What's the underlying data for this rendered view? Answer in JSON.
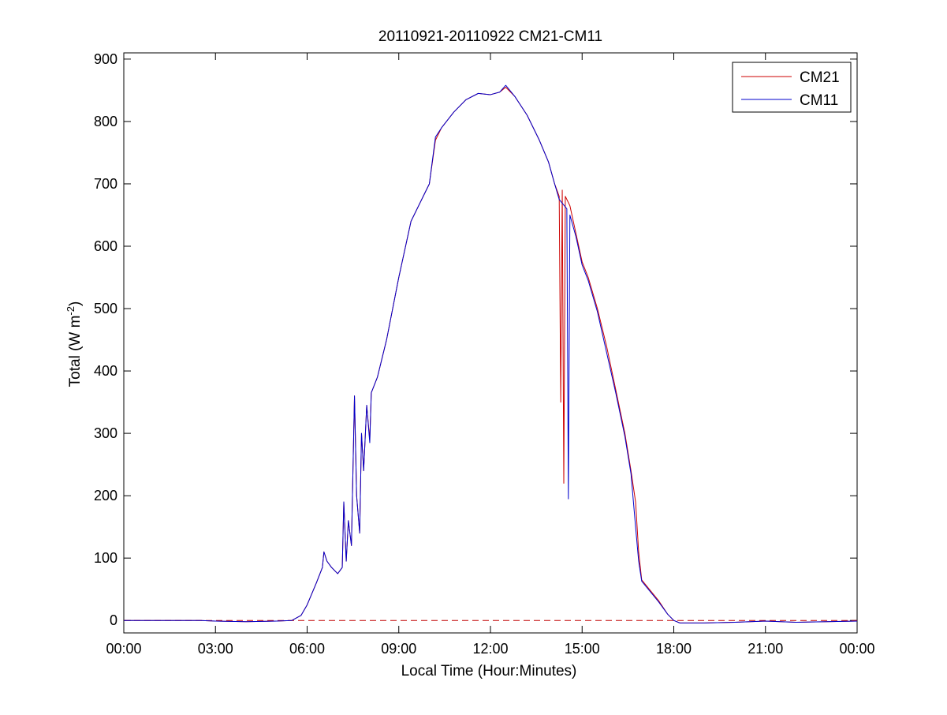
{
  "chart_data": {
    "type": "line",
    "title": "20110921-20110922 CM21-CM11",
    "xlabel": "Local Time (Hour:Minutes)",
    "ylabel": "Total (W m",
    "ylabel_superscript": "-2",
    "ylabel_suffix": ")",
    "xlim": [
      0,
      24
    ],
    "ylim": [
      -20,
      910
    ],
    "x_ticks": [
      0,
      3,
      6,
      9,
      12,
      15,
      18,
      21,
      24
    ],
    "x_tick_labels": [
      "00:00",
      "03:00",
      "06:00",
      "09:00",
      "12:00",
      "15:00",
      "18:00",
      "21:00",
      "00:00"
    ],
    "y_ticks": [
      0,
      100,
      200,
      300,
      400,
      500,
      600,
      700,
      800,
      900
    ],
    "y_tick_labels": [
      "0",
      "100",
      "200",
      "300",
      "400",
      "500",
      "600",
      "700",
      "800",
      "900"
    ],
    "grid": false,
    "legend_position": "top-right",
    "reference_line": {
      "y": 0,
      "style": "dashed",
      "color": "#c00000"
    },
    "series": [
      {
        "name": "CM21",
        "color": "#cc0000",
        "points": [
          [
            0,
            0
          ],
          [
            2.5,
            0
          ],
          [
            3,
            -1
          ],
          [
            4,
            -2
          ],
          [
            5,
            -1
          ],
          [
            5.5,
            0
          ],
          [
            5.8,
            8
          ],
          [
            6.0,
            25
          ],
          [
            6.3,
            60
          ],
          [
            6.5,
            85
          ],
          [
            6.55,
            110
          ],
          [
            6.65,
            95
          ],
          [
            6.8,
            85
          ],
          [
            7.0,
            75
          ],
          [
            7.15,
            85
          ],
          [
            7.2,
            190
          ],
          [
            7.28,
            95
          ],
          [
            7.35,
            160
          ],
          [
            7.45,
            120
          ],
          [
            7.55,
            360
          ],
          [
            7.62,
            200
          ],
          [
            7.72,
            140
          ],
          [
            7.78,
            300
          ],
          [
            7.85,
            240
          ],
          [
            7.95,
            345
          ],
          [
            8.05,
            290
          ],
          [
            8.1,
            365
          ],
          [
            8.3,
            390
          ],
          [
            8.6,
            450
          ],
          [
            9.0,
            550
          ],
          [
            9.4,
            640
          ],
          [
            9.8,
            680
          ],
          [
            10.0,
            700
          ],
          [
            10.2,
            770
          ],
          [
            10.4,
            790
          ],
          [
            10.8,
            815
          ],
          [
            11.2,
            835
          ],
          [
            11.6,
            845
          ],
          [
            12.0,
            843
          ],
          [
            12.3,
            847
          ],
          [
            12.5,
            855
          ],
          [
            12.8,
            840
          ],
          [
            13.2,
            810
          ],
          [
            13.6,
            770
          ],
          [
            13.9,
            735
          ],
          [
            14.1,
            700
          ],
          [
            14.25,
            680
          ],
          [
            14.3,
            350
          ],
          [
            14.35,
            690
          ],
          [
            14.4,
            220
          ],
          [
            14.45,
            680
          ],
          [
            14.6,
            665
          ],
          [
            14.8,
            620
          ],
          [
            15.0,
            575
          ],
          [
            15.2,
            550
          ],
          [
            15.5,
            500
          ],
          [
            15.8,
            440
          ],
          [
            16.1,
            370
          ],
          [
            16.4,
            300
          ],
          [
            16.6,
            240
          ],
          [
            16.75,
            190
          ],
          [
            16.85,
            110
          ],
          [
            16.95,
            65
          ],
          [
            17.2,
            50
          ],
          [
            17.5,
            32
          ],
          [
            17.8,
            10
          ],
          [
            18.0,
            0
          ],
          [
            18.2,
            -4
          ],
          [
            19.0,
            -4
          ],
          [
            20.0,
            -3
          ],
          [
            21.0,
            -1
          ],
          [
            22.0,
            -3
          ],
          [
            23.0,
            -2
          ],
          [
            24.0,
            -1
          ]
        ]
      },
      {
        "name": "CM11",
        "color": "#0000cc",
        "points": [
          [
            0,
            0
          ],
          [
            2.5,
            0
          ],
          [
            3,
            -1
          ],
          [
            4,
            -2
          ],
          [
            5,
            -1
          ],
          [
            5.5,
            0
          ],
          [
            5.8,
            8
          ],
          [
            6.0,
            25
          ],
          [
            6.3,
            60
          ],
          [
            6.5,
            85
          ],
          [
            6.55,
            110
          ],
          [
            6.65,
            95
          ],
          [
            6.8,
            85
          ],
          [
            7.0,
            75
          ],
          [
            7.15,
            85
          ],
          [
            7.2,
            190
          ],
          [
            7.28,
            95
          ],
          [
            7.35,
            160
          ],
          [
            7.45,
            120
          ],
          [
            7.55,
            360
          ],
          [
            7.62,
            200
          ],
          [
            7.72,
            140
          ],
          [
            7.78,
            300
          ],
          [
            7.85,
            240
          ],
          [
            7.95,
            345
          ],
          [
            8.05,
            285
          ],
          [
            8.1,
            365
          ],
          [
            8.3,
            390
          ],
          [
            8.6,
            450
          ],
          [
            9.0,
            550
          ],
          [
            9.4,
            640
          ],
          [
            9.8,
            680
          ],
          [
            10.0,
            700
          ],
          [
            10.2,
            775
          ],
          [
            10.4,
            790
          ],
          [
            10.8,
            815
          ],
          [
            11.2,
            835
          ],
          [
            11.6,
            845
          ],
          [
            12.0,
            843
          ],
          [
            12.3,
            847
          ],
          [
            12.5,
            858
          ],
          [
            12.8,
            840
          ],
          [
            13.2,
            810
          ],
          [
            13.6,
            770
          ],
          [
            13.9,
            735
          ],
          [
            14.1,
            700
          ],
          [
            14.25,
            675
          ],
          [
            14.5,
            660
          ],
          [
            14.55,
            195
          ],
          [
            14.6,
            650
          ],
          [
            14.8,
            615
          ],
          [
            15.0,
            570
          ],
          [
            15.2,
            545
          ],
          [
            15.5,
            495
          ],
          [
            15.8,
            430
          ],
          [
            16.1,
            365
          ],
          [
            16.4,
            295
          ],
          [
            16.6,
            235
          ],
          [
            16.75,
            150
          ],
          [
            16.85,
            95
          ],
          [
            16.95,
            63
          ],
          [
            17.2,
            48
          ],
          [
            17.5,
            30
          ],
          [
            17.8,
            10
          ],
          [
            18.0,
            0
          ],
          [
            18.2,
            -4
          ],
          [
            19.0,
            -4
          ],
          [
            20.0,
            -3
          ],
          [
            21.0,
            -1
          ],
          [
            22.0,
            -3
          ],
          [
            23.0,
            -2
          ],
          [
            24.0,
            -1
          ]
        ]
      }
    ]
  }
}
